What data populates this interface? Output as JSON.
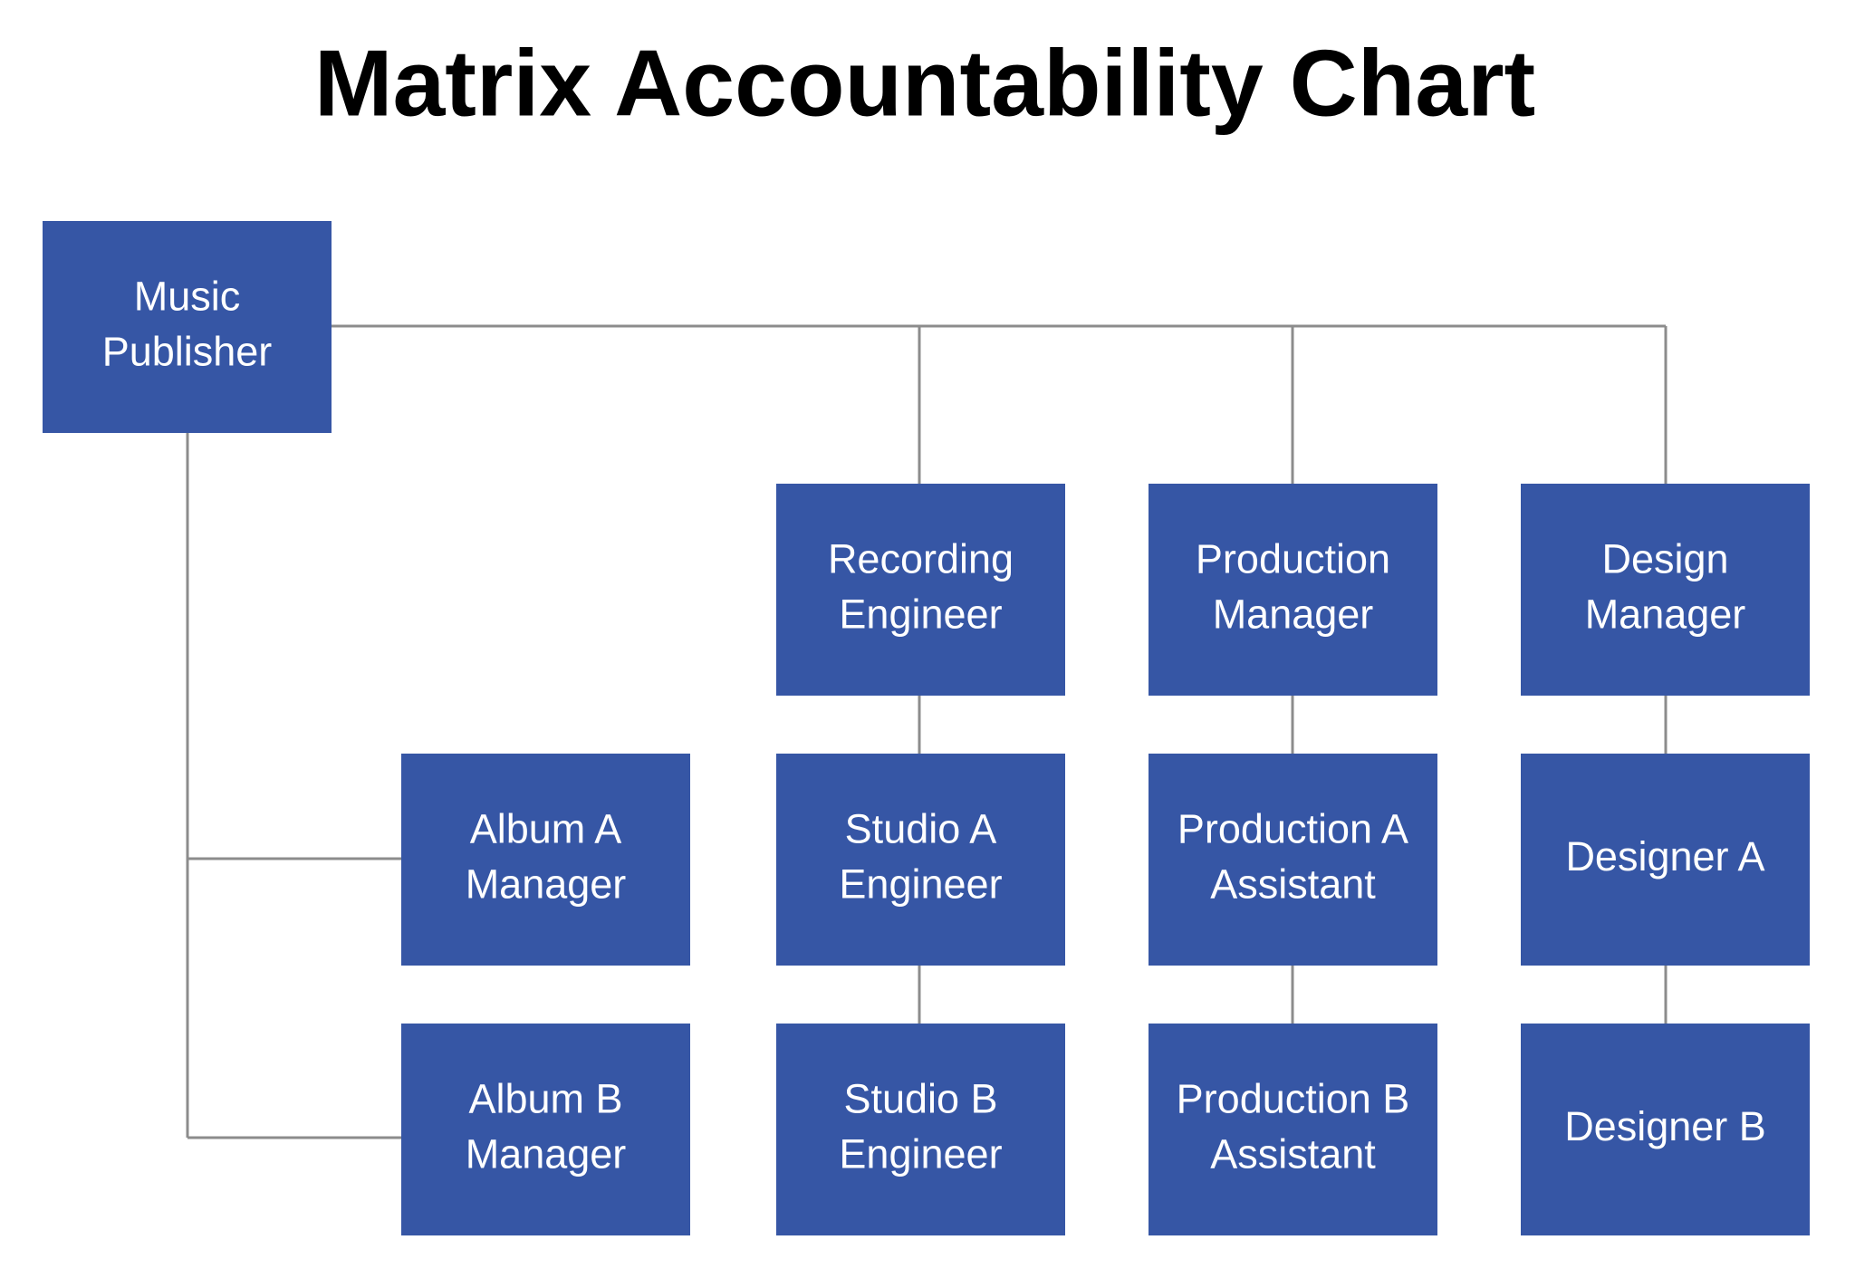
{
  "title": "Matrix Accountability Chart",
  "nodes": [
    {
      "lines": [
        "Music",
        "Publisher"
      ]
    },
    {
      "lines": [
        "Recording",
        "Engineer"
      ]
    },
    {
      "lines": [
        "Production",
        "Manager"
      ]
    },
    {
      "lines": [
        "Design",
        "Manager"
      ]
    },
    {
      "lines": [
        "Album A",
        "Manager"
      ]
    },
    {
      "lines": [
        "Studio A",
        "Engineer"
      ]
    },
    {
      "lines": [
        "Production A",
        "Assistant"
      ]
    },
    {
      "lines": [
        "Designer A"
      ]
    },
    {
      "lines": [
        "Album B",
        "Manager"
      ]
    },
    {
      "lines": [
        "Studio B",
        "Engineer"
      ]
    },
    {
      "lines": [
        "Production B",
        "Assistant"
      ]
    },
    {
      "lines": [
        "Designer B"
      ]
    }
  ]
}
